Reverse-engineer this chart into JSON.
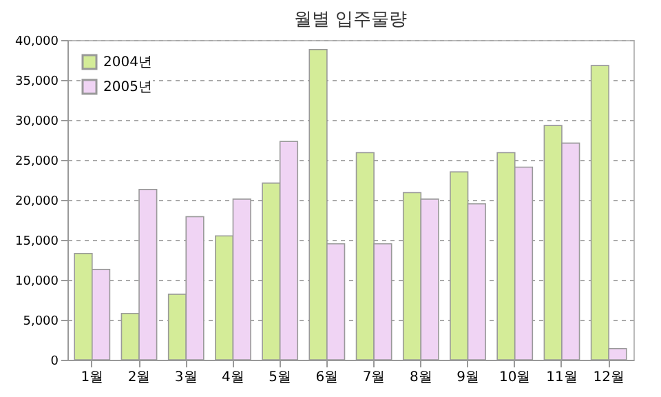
{
  "chart_data": {
    "type": "bar",
    "title": "월별 입주물량",
    "categories": [
      "1월",
      "2월",
      "3월",
      "4월",
      "5월",
      "6월",
      "7월",
      "8월",
      "9월",
      "10월",
      "11월",
      "12월"
    ],
    "series": [
      {
        "name": "2004년",
        "color": "#d4ec98",
        "values": [
          13300,
          5800,
          8200,
          15500,
          22100,
          38800,
          25900,
          20900,
          23500,
          25900,
          29300,
          36800
        ]
      },
      {
        "name": "2005년",
        "color": "#f0d4f4",
        "values": [
          11300,
          21300,
          17900,
          20100,
          27300,
          14500,
          14500,
          20100,
          19500,
          24100,
          27100,
          1400
        ]
      }
    ],
    "ylim": [
      0,
      40000
    ],
    "yticks": [
      0,
      {
        "value": 5000,
        "label": "5,000"
      },
      {
        "value": 10000,
        "label": "10,000"
      },
      {
        "value": 15000,
        "label": "15,000"
      },
      {
        "value": 20000,
        "label": "20,000"
      },
      {
        "value": 25000,
        "label": "25,000"
      },
      {
        "value": 30000,
        "label": "30,000"
      },
      {
        "value": 35000,
        "label": "35,000"
      },
      {
        "value": 40000,
        "label": "40,000"
      }
    ],
    "grid": "y",
    "legend": "top left"
  }
}
